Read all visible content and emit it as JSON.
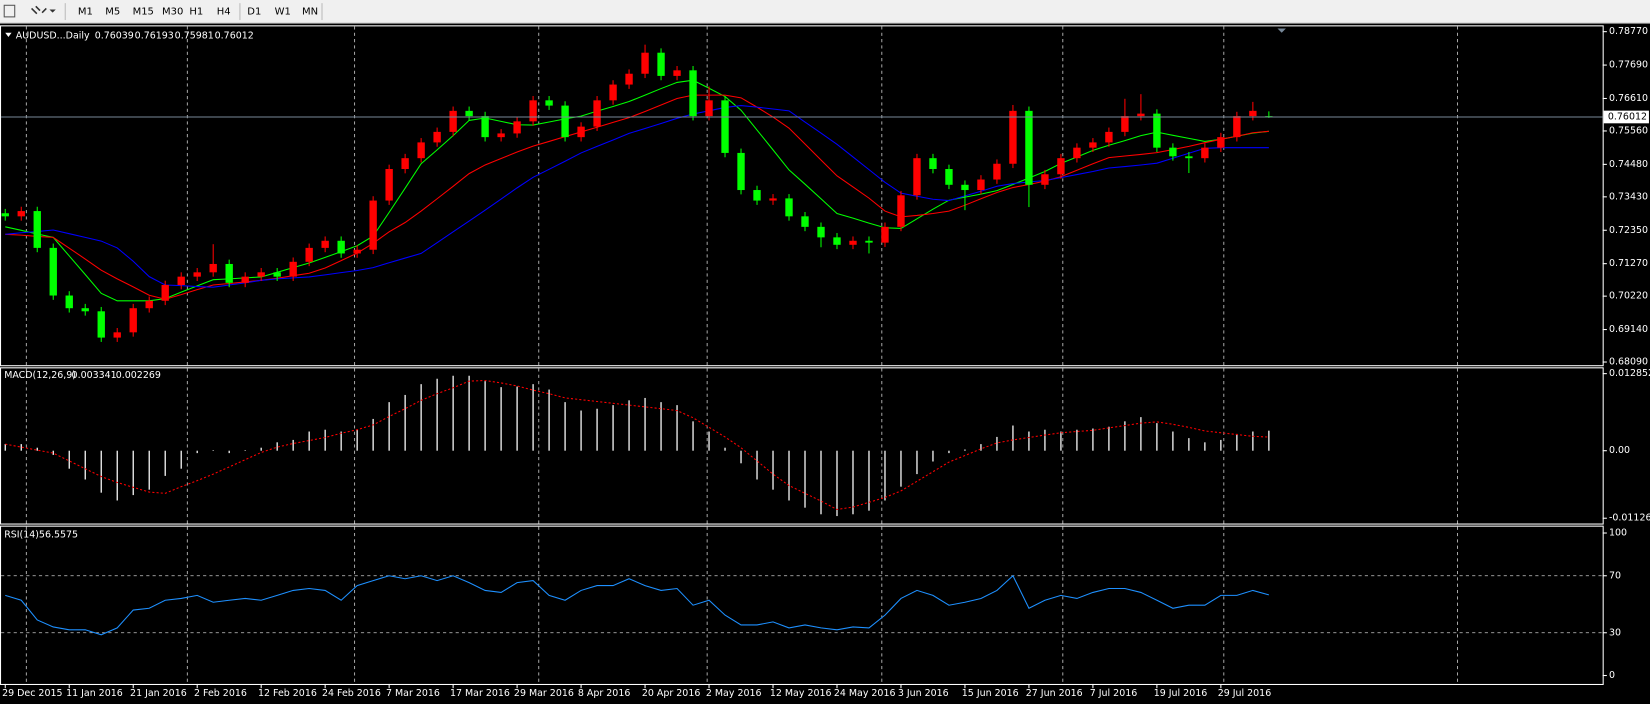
{
  "toolbar": {
    "timeframes": [
      "M1",
      "M5",
      "M15",
      "M30",
      "H1",
      "H4",
      "D1",
      "W1",
      "MN"
    ]
  },
  "chart_data": [
    {
      "type": "candlestick",
      "symbol_label": "AUDUSD...Daily",
      "categories": [
        "29 Dec 2015",
        null,
        null,
        null,
        "11 Jan 2016",
        null,
        null,
        null,
        "21 Jan 2016",
        null,
        null,
        null,
        "2 Feb 2016",
        null,
        null,
        null,
        "12 Feb 2016",
        null,
        null,
        null,
        "24 Feb 2016",
        null,
        null,
        null,
        "7 Mar 2016",
        null,
        null,
        null,
        "17 Mar 2016",
        null,
        null,
        null,
        "29 Mar 2016",
        null,
        null,
        null,
        "8 Apr 2016",
        null,
        null,
        null,
        "20 Apr 2016",
        null,
        null,
        null,
        "2 May 2016",
        null,
        null,
        null,
        "12 May 2016",
        null,
        null,
        null,
        "24 May 2016",
        null,
        null,
        null,
        "3 Jun 2016",
        null,
        null,
        null,
        "15 Jun 2016",
        null,
        null,
        null,
        "27 Jun 2016",
        null,
        null,
        null,
        "7 Jul 2016",
        null,
        null,
        null,
        "19 Jul 2016",
        null,
        null,
        null,
        "29 Jul 2016",
        null,
        null,
        null
      ],
      "open": [
        0.729,
        0.728,
        0.7297,
        0.7178,
        0.7024,
        0.6983,
        0.6973,
        0.6888,
        0.6905,
        0.6983,
        0.7007,
        0.7058,
        0.7085,
        0.7099,
        0.7126,
        0.7065,
        0.7085,
        0.7099,
        0.7085,
        0.7133,
        0.7178,
        0.7201,
        0.716,
        0.7172,
        0.7331,
        0.7433,
        0.7468,
        0.7519,
        0.7553,
        0.7621,
        0.7604,
        0.7536,
        0.7548,
        0.7587,
        0.7655,
        0.7638,
        0.7536,
        0.757,
        0.7655,
        0.7706,
        0.7741,
        0.7809,
        0.7734,
        0.7752,
        0.7604,
        0.7655,
        0.7485,
        0.7365,
        0.7331,
        0.7338,
        0.728,
        0.7246,
        0.7212,
        0.7188,
        0.7201,
        0.7195,
        0.7246,
        0.7348,
        0.7468,
        0.7433,
        0.7382,
        0.7365,
        0.7399,
        0.745,
        0.7621,
        0.7382,
        0.7416,
        0.7468,
        0.7502,
        0.7519,
        0.7553,
        0.7604,
        0.7612,
        0.7502,
        0.7474,
        0.7468,
        0.7502,
        0.7536,
        0.7604,
        0.76039
      ],
      "high": [
        0.7304,
        0.7311,
        0.7311,
        0.7192,
        0.7038,
        0.6997,
        0.6987,
        0.6919,
        0.6997,
        0.7021,
        0.7072,
        0.7099,
        0.7113,
        0.719,
        0.714,
        0.7099,
        0.7113,
        0.7113,
        0.7147,
        0.7192,
        0.7215,
        0.7215,
        0.7186,
        0.7345,
        0.7447,
        0.7482,
        0.7533,
        0.7567,
        0.7635,
        0.7635,
        0.7618,
        0.7562,
        0.7601,
        0.7669,
        0.7669,
        0.7652,
        0.7584,
        0.7669,
        0.772,
        0.7755,
        0.7835,
        0.7823,
        0.7766,
        0.7766,
        0.77,
        0.7669,
        0.7499,
        0.7379,
        0.7352,
        0.7352,
        0.7294,
        0.726,
        0.7226,
        0.7215,
        0.7215,
        0.726,
        0.7362,
        0.7482,
        0.7482,
        0.7447,
        0.7396,
        0.7413,
        0.7464,
        0.764,
        0.7635,
        0.743,
        0.7482,
        0.7516,
        0.7533,
        0.7567,
        0.766,
        0.7675,
        0.7626,
        0.7516,
        0.7488,
        0.7516,
        0.755,
        0.7618,
        0.765,
        0.76193
      ],
      "low": [
        0.7266,
        0.7266,
        0.7164,
        0.701,
        0.6969,
        0.6959,
        0.6874,
        0.6874,
        0.6891,
        0.6969,
        0.6993,
        0.7044,
        0.7071,
        0.7085,
        0.7051,
        0.7051,
        0.7071,
        0.7071,
        0.7071,
        0.7119,
        0.7164,
        0.7146,
        0.7146,
        0.7158,
        0.7317,
        0.7419,
        0.7454,
        0.7505,
        0.7539,
        0.759,
        0.7522,
        0.7522,
        0.7534,
        0.7573,
        0.7624,
        0.7522,
        0.7522,
        0.7556,
        0.7641,
        0.7692,
        0.7727,
        0.772,
        0.772,
        0.759,
        0.759,
        0.7471,
        0.7351,
        0.7317,
        0.7317,
        0.7266,
        0.7232,
        0.718,
        0.7174,
        0.7174,
        0.716,
        0.7181,
        0.7232,
        0.7334,
        0.7419,
        0.7368,
        0.73,
        0.7351,
        0.7385,
        0.7436,
        0.731,
        0.7368,
        0.7402,
        0.7454,
        0.7488,
        0.7505,
        0.7539,
        0.759,
        0.7488,
        0.746,
        0.742,
        0.7454,
        0.7488,
        0.7522,
        0.759,
        0.75981
      ],
      "close": [
        0.728,
        0.7297,
        0.7178,
        0.7024,
        0.6983,
        0.6973,
        0.6888,
        0.6905,
        0.6983,
        0.7007,
        0.7058,
        0.7085,
        0.7099,
        0.7126,
        0.7065,
        0.7085,
        0.7099,
        0.7085,
        0.7133,
        0.7178,
        0.7201,
        0.716,
        0.7172,
        0.7331,
        0.7433,
        0.7468,
        0.7519,
        0.7553,
        0.7621,
        0.7604,
        0.7536,
        0.7548,
        0.7587,
        0.7655,
        0.7638,
        0.7536,
        0.757,
        0.7655,
        0.7706,
        0.7741,
        0.7809,
        0.7734,
        0.7752,
        0.7604,
        0.7655,
        0.7485,
        0.7365,
        0.7331,
        0.7338,
        0.728,
        0.7246,
        0.7212,
        0.7188,
        0.7201,
        0.7195,
        0.7246,
        0.7348,
        0.7468,
        0.7433,
        0.7382,
        0.7365,
        0.7399,
        0.745,
        0.7621,
        0.7382,
        0.7416,
        0.7468,
        0.7502,
        0.7519,
        0.7553,
        0.7604,
        0.7612,
        0.7502,
        0.7474,
        0.7468,
        0.7502,
        0.7536,
        0.7604,
        0.7621,
        0.76012
      ],
      "up_color": "#ff0000",
      "down_color": "#00ff00",
      "price_line_color": "#778899",
      "series": [
        {
          "color": "#00ff00",
          "values": [
            0.7246,
            0.7235,
            0.7223,
            0.7212,
            0.7152,
            0.7092,
            0.7031,
            0.7007,
            0.7007,
            0.7007,
            0.7014,
            0.7035,
            0.7055,
            0.7075,
            0.7078,
            0.7081,
            0.7084,
            0.7099,
            0.7114,
            0.7129,
            0.7147,
            0.7166,
            0.7185,
            0.7216,
            0.7293,
            0.7371,
            0.745,
            0.7495,
            0.7541,
            0.759,
            0.7598,
            0.7587,
            0.7576,
            0.7575,
            0.7585,
            0.7595,
            0.7604,
            0.762,
            0.7635,
            0.7651,
            0.7672,
            0.7693,
            0.7713,
            0.772,
            0.7694,
            0.7667,
            0.7623,
            0.7559,
            0.7495,
            0.743,
            0.7384,
            0.7337,
            0.7289,
            0.7274,
            0.7258,
            0.7243,
            0.7241,
            0.7272,
            0.7303,
            0.7332,
            0.7342,
            0.7352,
            0.7363,
            0.7383,
            0.7404,
            0.7425,
            0.7451,
            0.7472,
            0.7493,
            0.751,
            0.7525,
            0.7541,
            0.7552,
            0.7542,
            0.7532,
            0.7522,
            0.7529,
            0.7539,
            0.7549,
            0.7555
          ]
        },
        {
          "color": "#ff0000",
          "values": [
            0.7222,
            0.7219,
            0.7215,
            0.7212,
            0.7177,
            0.7142,
            0.7106,
            0.7078,
            0.7052,
            0.7025,
            0.7012,
            0.7027,
            0.7043,
            0.7058,
            0.7063,
            0.7068,
            0.7073,
            0.708,
            0.7088,
            0.7096,
            0.7113,
            0.7137,
            0.7161,
            0.7193,
            0.723,
            0.726,
            0.7297,
            0.7337,
            0.7377,
            0.7418,
            0.7446,
            0.7467,
            0.7488,
            0.7507,
            0.7522,
            0.7538,
            0.7553,
            0.7568,
            0.7584,
            0.7599,
            0.7619,
            0.764,
            0.7661,
            0.7672,
            0.7672,
            0.7672,
            0.7663,
            0.7633,
            0.7601,
            0.7565,
            0.7514,
            0.7462,
            0.7411,
            0.7375,
            0.7339,
            0.7297,
            0.7278,
            0.7283,
            0.7289,
            0.7297,
            0.7316,
            0.7337,
            0.7357,
            0.7373,
            0.7383,
            0.7394,
            0.7408,
            0.7429,
            0.745,
            0.747,
            0.7475,
            0.748,
            0.7486,
            0.7496,
            0.7506,
            0.7518,
            0.7529,
            0.7539,
            0.755,
            0.7555
          ]
        },
        {
          "color": "#0000ff",
          "values": [
            0.7222,
            0.7227,
            0.7231,
            0.7236,
            0.7224,
            0.7212,
            0.72,
            0.7178,
            0.7135,
            0.7085,
            0.7058,
            0.7056,
            0.7053,
            0.7051,
            0.7058,
            0.7065,
            0.7073,
            0.7078,
            0.7081,
            0.7084,
            0.7091,
            0.7098,
            0.7105,
            0.7114,
            0.713,
            0.7145,
            0.716,
            0.7195,
            0.723,
            0.7265,
            0.73,
            0.7336,
            0.7372,
            0.7406,
            0.7432,
            0.7458,
            0.7485,
            0.7506,
            0.7527,
            0.7548,
            0.7564,
            0.758,
            0.7597,
            0.7611,
            0.7621,
            0.7632,
            0.7638,
            0.7633,
            0.7627,
            0.7621,
            0.7585,
            0.7549,
            0.7513,
            0.7472,
            0.7431,
            0.739,
            0.7355,
            0.7345,
            0.7335,
            0.7331,
            0.7346,
            0.7361,
            0.7377,
            0.7386,
            0.7391,
            0.7396,
            0.7405,
            0.7415,
            0.7425,
            0.7436,
            0.7441,
            0.7446,
            0.7452,
            0.7468,
            0.7484,
            0.75,
            0.7502,
            0.7502,
            0.7502,
            0.7502
          ]
        }
      ],
      "ylim": [
        0.6809,
        0.7877
      ],
      "yticks": [
        {
          "value": 0.7877,
          "label": "0.78770"
        },
        {
          "value": 0.7769,
          "label": "0.77690"
        },
        {
          "value": 0.7661,
          "label": "0.76610"
        },
        {
          "value": 0.7556,
          "label": "0.75560"
        },
        {
          "value": 0.7448,
          "label": "0.74480"
        },
        {
          "value": 0.7343,
          "label": "0.73430"
        },
        {
          "value": 0.7235,
          "label": "0.72350"
        },
        {
          "value": 0.7127,
          "label": "0.71270"
        },
        {
          "value": 0.7022,
          "label": "0.70220"
        },
        {
          "value": 0.6914,
          "label": "0.69140"
        },
        {
          "value": 0.6809,
          "label": "0.68090"
        }
      ]
    },
    {
      "type": "macd",
      "label": "MACD(12,26,9)",
      "histogram": [
        0.0011,
        0.0011,
        0.0005,
        -0.0007,
        -0.003,
        -0.0048,
        -0.007,
        -0.0083,
        -0.0074,
        -0.0065,
        -0.0042,
        -0.003,
        -0.0004,
        0.0001,
        -0.0004,
        0.0001,
        0.0005,
        0.0014,
        0.0018,
        0.0032,
        0.0035,
        0.0032,
        0.0035,
        0.0053,
        0.0081,
        0.0093,
        0.0111,
        0.012,
        0.0125,
        0.0125,
        0.0116,
        0.0106,
        0.0107,
        0.0111,
        0.0102,
        0.0081,
        0.0067,
        0.007,
        0.0076,
        0.0084,
        0.0088,
        0.0081,
        0.0076,
        0.0049,
        0.0032,
        0.0005,
        -0.0021,
        -0.0048,
        -0.0065,
        -0.0083,
        -0.0095,
        -0.0106,
        -0.0109,
        -0.0106,
        -0.01,
        -0.0083,
        -0.006,
        -0.0039,
        -0.0018,
        -0.0004,
        0.0002,
        0.0011,
        0.0023,
        0.0042,
        0.0032,
        0.0035,
        0.0032,
        0.0035,
        0.0037,
        0.004,
        0.0049,
        0.0056,
        0.0046,
        0.0032,
        0.0021,
        0.0014,
        0.0018,
        0.0028,
        0.0032,
        0.003341
      ],
      "signal": [
        0.0011,
        0.0006,
        0.0001,
        -0.0004,
        -0.0017,
        -0.003,
        -0.0043,
        -0.0053,
        -0.0061,
        -0.0069,
        -0.0071,
        -0.006,
        -0.005,
        -0.0039,
        -0.0027,
        -0.0015,
        -0.0003,
        0.0006,
        0.0012,
        0.0017,
        0.0022,
        0.0029,
        0.0035,
        0.0043,
        0.0057,
        0.007,
        0.0084,
        0.0095,
        0.0105,
        0.0116,
        0.0117,
        0.0113,
        0.0108,
        0.0101,
        0.0095,
        0.0088,
        0.0085,
        0.0082,
        0.0079,
        0.0076,
        0.0073,
        0.007,
        0.0067,
        0.0055,
        0.0039,
        0.0023,
        0.0005,
        -0.0017,
        -0.0039,
        -0.0058,
        -0.0071,
        -0.0084,
        -0.0098,
        -0.0094,
        -0.0086,
        -0.0078,
        -0.0067,
        -0.0051,
        -0.0035,
        -0.0019,
        -0.0008,
        0.0003,
        0.0013,
        0.0018,
        0.0022,
        0.0026,
        0.003,
        0.0032,
        0.0034,
        0.0038,
        0.0042,
        0.0046,
        0.0048,
        0.0044,
        0.0039,
        0.0033,
        0.003,
        0.0027,
        0.0024,
        0.002269
      ],
      "histogram_color": "#ffffff",
      "signal_color": "#ff0000",
      "ylim": [
        -0.011261,
        0.012852
      ],
      "yticks": [
        0.012852,
        {
          "value": 0,
          "label": "0.00"
        },
        -0.011261
      ]
    },
    {
      "type": "line",
      "label": "RSI(14)",
      "values": [
        56.2,
        52.8,
        39.0,
        34.1,
        32.1,
        32.1,
        28.6,
        33.4,
        45.9,
        47.2,
        52.8,
        54.1,
        56.2,
        51.4,
        52.8,
        54.1,
        52.8,
        56.2,
        59.7,
        61.0,
        59.7,
        52.8,
        63.1,
        66.6,
        70.0,
        67.9,
        70.0,
        66.6,
        70.0,
        65.2,
        59.7,
        58.3,
        65.2,
        66.6,
        56.2,
        52.8,
        59.7,
        63.1,
        63.1,
        67.9,
        63.1,
        59.7,
        61.0,
        49.3,
        52.8,
        42.4,
        35.5,
        35.5,
        37.6,
        33.4,
        35.5,
        33.4,
        32.1,
        34.1,
        33.4,
        42.4,
        54.1,
        59.7,
        56.2,
        49.3,
        51.4,
        54.1,
        59.7,
        70.0,
        47.2,
        52.8,
        56.2,
        54.1,
        58.3,
        61.0,
        61.0,
        58.3,
        52.8,
        47.2,
        49.3,
        49.3,
        56.2,
        56.2,
        59.7,
        56.5575
      ],
      "color": "#1e90ff",
      "levels": [
        70,
        30
      ],
      "ylim": [
        0,
        100
      ],
      "yticks": [
        100,
        70,
        30,
        0
      ]
    }
  ]
}
